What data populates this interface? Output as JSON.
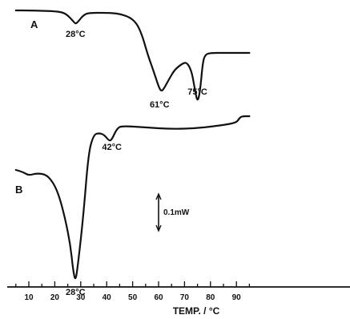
{
  "chart_data": {
    "type": "line",
    "xlabel": "TEMP. / °C",
    "xlim": [
      5,
      95
    ],
    "x_ticks": [
      10,
      20,
      30,
      40,
      50,
      60,
      70,
      80,
      90
    ],
    "scale_bar_label": "0.1mW",
    "series": [
      {
        "name": "A",
        "points": [
          [
            5,
            13
          ],
          [
            10,
            13
          ],
          [
            15,
            13.5
          ],
          [
            20,
            14
          ],
          [
            24,
            16
          ],
          [
            27,
            26
          ],
          [
            28,
            30
          ],
          [
            29,
            27
          ],
          [
            31,
            19
          ],
          [
            33,
            16
          ],
          [
            40,
            16
          ],
          [
            45,
            17
          ],
          [
            50,
            23
          ],
          [
            53,
            37
          ],
          [
            56,
            70
          ],
          [
            58,
            88
          ],
          [
            60,
            108
          ],
          [
            61,
            114
          ],
          [
            62,
            111
          ],
          [
            64,
            99
          ],
          [
            66,
            88
          ],
          [
            68,
            82
          ],
          [
            70,
            78
          ],
          [
            71,
            79
          ],
          [
            72,
            84
          ],
          [
            73,
            93
          ],
          [
            74,
            112
          ],
          [
            75,
            128
          ],
          [
            76,
            114
          ],
          [
            77,
            78
          ],
          [
            78,
            68
          ],
          [
            80,
            66
          ],
          [
            85,
            66
          ],
          [
            90,
            66
          ],
          [
            95,
            66
          ]
        ],
        "annotations": [
          {
            "x": 28,
            "label": "28°C"
          },
          {
            "x": 61,
            "label": "61°C"
          },
          {
            "x": 75,
            "label": "75°C"
          }
        ]
      },
      {
        "name": "B",
        "points": [
          [
            5,
            212
          ],
          [
            8,
            215
          ],
          [
            10,
            219
          ],
          [
            13,
            216
          ],
          [
            17,
            218
          ],
          [
            20,
            231
          ],
          [
            22,
            248
          ],
          [
            24,
            273
          ],
          [
            26,
            305
          ],
          [
            27,
            336
          ],
          [
            28,
            352
          ],
          [
            29,
            328
          ],
          [
            31,
            270
          ],
          [
            33,
            190
          ],
          [
            35,
            168
          ],
          [
            37,
            166
          ],
          [
            39,
            168
          ],
          [
            41,
            176
          ],
          [
            42,
            174
          ],
          [
            44,
            160
          ],
          [
            46,
            157
          ],
          [
            55,
            159
          ],
          [
            65,
            161
          ],
          [
            75,
            160
          ],
          [
            85,
            156
          ],
          [
            90,
            153
          ],
          [
            91,
            148
          ],
          [
            92,
            145
          ],
          [
            95,
            145
          ]
        ],
        "annotations": [
          {
            "x": 28,
            "label": "28°C"
          },
          {
            "x": 42,
            "label": "42°C"
          }
        ]
      }
    ]
  }
}
